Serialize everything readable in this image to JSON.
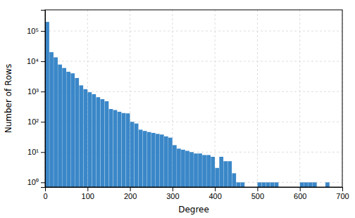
{
  "chart_data": {
    "type": "bar",
    "xlabel": "Degree",
    "ylabel": "Number of Rows",
    "x": [
      5,
      15,
      25,
      35,
      45,
      55,
      65,
      75,
      85,
      95,
      105,
      115,
      125,
      135,
      145,
      155,
      165,
      175,
      185,
      195,
      205,
      215,
      225,
      235,
      245,
      255,
      265,
      275,
      285,
      295,
      305,
      315,
      325,
      335,
      345,
      355,
      365,
      375,
      385,
      395,
      405,
      415,
      425,
      435,
      445,
      455,
      465,
      505,
      515,
      525,
      535,
      545,
      605,
      615,
      625,
      635,
      665
    ],
    "values": [
      200000,
      20000,
      13500,
      7800,
      6000,
      4500,
      4000,
      2800,
      1600,
      1200,
      950,
      820,
      650,
      560,
      480,
      265,
      245,
      215,
      195,
      190,
      100,
      88,
      55,
      50,
      46,
      43,
      40,
      38,
      33,
      30,
      17,
      13,
      12,
      11,
      10,
      9,
      9,
      8,
      8,
      7,
      3,
      7,
      5,
      5,
      2,
      1,
      1,
      1,
      1,
      1,
      1,
      1,
      1,
      1,
      1,
      1,
      1
    ],
    "color": "#3a87c8",
    "log": "y",
    "xlim": [
      0,
      700
    ],
    "ylim": [
      0.7,
      500000
    ],
    "xticks": [
      0,
      100,
      200,
      300,
      400,
      500,
      600,
      700
    ],
    "yticks": [
      {
        "value": 1,
        "label": "10⁰"
      },
      {
        "value": 10,
        "label": "10¹"
      },
      {
        "value": 100,
        "label": "10²"
      },
      {
        "value": 1000,
        "label": "10³"
      },
      {
        "value": 10000,
        "label": "10⁴"
      },
      {
        "value": 100000,
        "label": "10⁵"
      }
    ],
    "grid": true
  }
}
